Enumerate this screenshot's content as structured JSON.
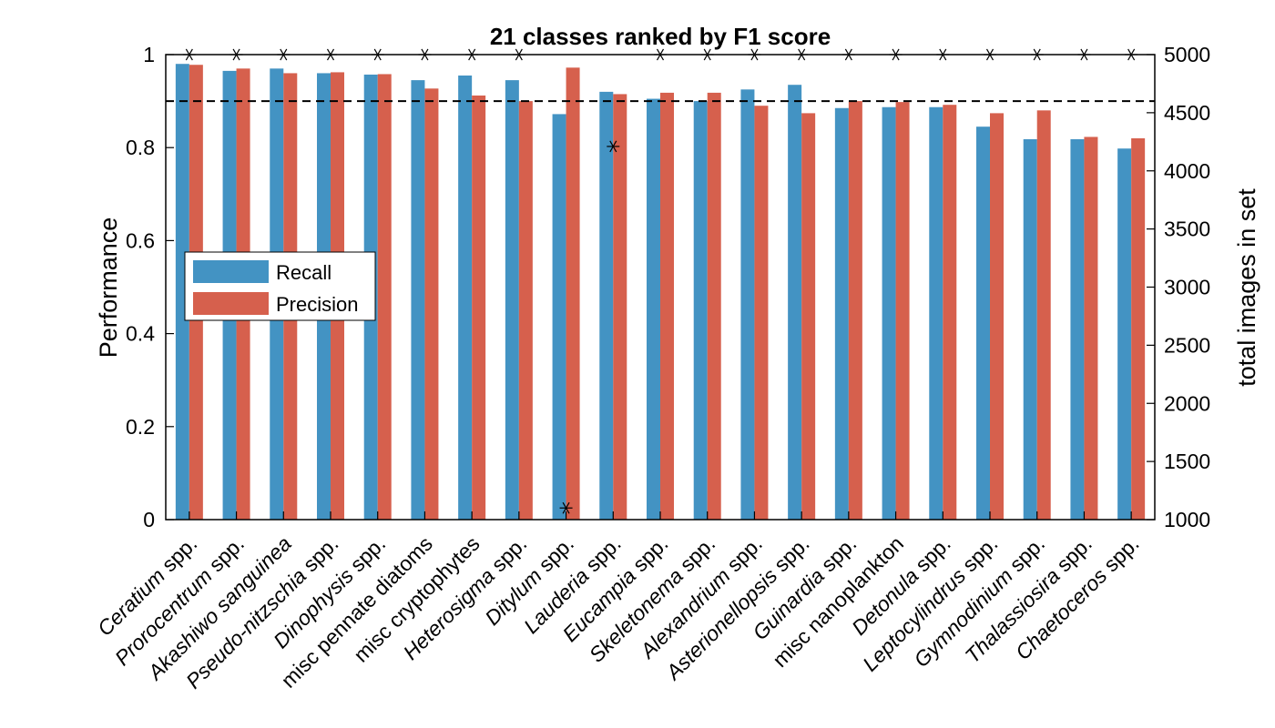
{
  "chart_data": {
    "type": "bar",
    "title": "21 classes ranked by F1 score",
    "ylabel": "Performance",
    "ylabel_right": "total images in set",
    "ylim": [
      0,
      1
    ],
    "ylim_right": [
      1000,
      5000
    ],
    "yticks": [
      "0",
      "0.2",
      "0.4",
      "0.6",
      "0.8",
      "1"
    ],
    "yticks_right": [
      "1000",
      "1500",
      "2000",
      "2500",
      "3000",
      "3500",
      "4000",
      "4500",
      "5000"
    ],
    "reference_line": 0.9,
    "grid": false,
    "legend_position": "middle-left",
    "colors": {
      "recall": "#4393C3",
      "precision": "#D6604D"
    },
    "categories": [
      {
        "pre": "",
        "it": "Ceratium",
        "post": " spp."
      },
      {
        "pre": "",
        "it": "Prorocentrum",
        "post": " spp."
      },
      {
        "pre": "",
        "it": "Akashiwo sanguinea",
        "post": ""
      },
      {
        "pre": "",
        "it": "Pseudo-nitzschia",
        "post": " spp."
      },
      {
        "pre": "",
        "it": "Dinophysis",
        "post": " spp."
      },
      {
        "pre": "misc pennate diatoms",
        "it": "",
        "post": ""
      },
      {
        "pre": "misc cryptophytes",
        "it": "",
        "post": ""
      },
      {
        "pre": "",
        "it": "Heterosigma",
        "post": " spp."
      },
      {
        "pre": "",
        "it": "Ditylum",
        "post": " spp."
      },
      {
        "pre": "",
        "it": "Lauderia",
        "post": " spp."
      },
      {
        "pre": "",
        "it": "Eucampia",
        "post": " spp."
      },
      {
        "pre": "",
        "it": "Skeletonema",
        "post": " spp."
      },
      {
        "pre": "",
        "it": "Alexandrium",
        "post": " spp."
      },
      {
        "pre": "",
        "it": "Asterionellopsis",
        "post": " spp."
      },
      {
        "pre": "",
        "it": "Guinardia",
        "post": " spp."
      },
      {
        "pre": "misc nanoplankton",
        "it": "",
        "post": ""
      },
      {
        "pre": "",
        "it": "Detonula",
        "post": " spp."
      },
      {
        "pre": "",
        "it": "Leptocylindrus",
        "post": " spp."
      },
      {
        "pre": "",
        "it": "Gymnodinium",
        "post": " spp."
      },
      {
        "pre": "",
        "it": "Thalassiosira",
        "post": " spp."
      },
      {
        "pre": "",
        "it": "Chaetoceros",
        "post": " spp."
      }
    ],
    "series": [
      {
        "name": "Recall",
        "values": [
          0.98,
          0.965,
          0.97,
          0.96,
          0.957,
          0.945,
          0.955,
          0.945,
          0.872,
          0.92,
          0.905,
          0.9,
          0.925,
          0.935,
          0.885,
          0.887,
          0.887,
          0.845,
          0.818,
          0.818,
          0.798
        ]
      },
      {
        "name": "Precision",
        "values": [
          0.978,
          0.97,
          0.96,
          0.962,
          0.958,
          0.927,
          0.912,
          0.9,
          0.972,
          0.915,
          0.918,
          0.918,
          0.89,
          0.874,
          0.9,
          0.898,
          0.892,
          0.874,
          0.88,
          0.823,
          0.82
        ]
      }
    ],
    "image_counts": [
      5000,
      5000,
      5000,
      5000,
      5000,
      5000,
      5000,
      5000,
      1100,
      4210,
      5000,
      5000,
      5000,
      5000,
      5000,
      5000,
      5000,
      5000,
      5000,
      5000,
      5000
    ]
  }
}
